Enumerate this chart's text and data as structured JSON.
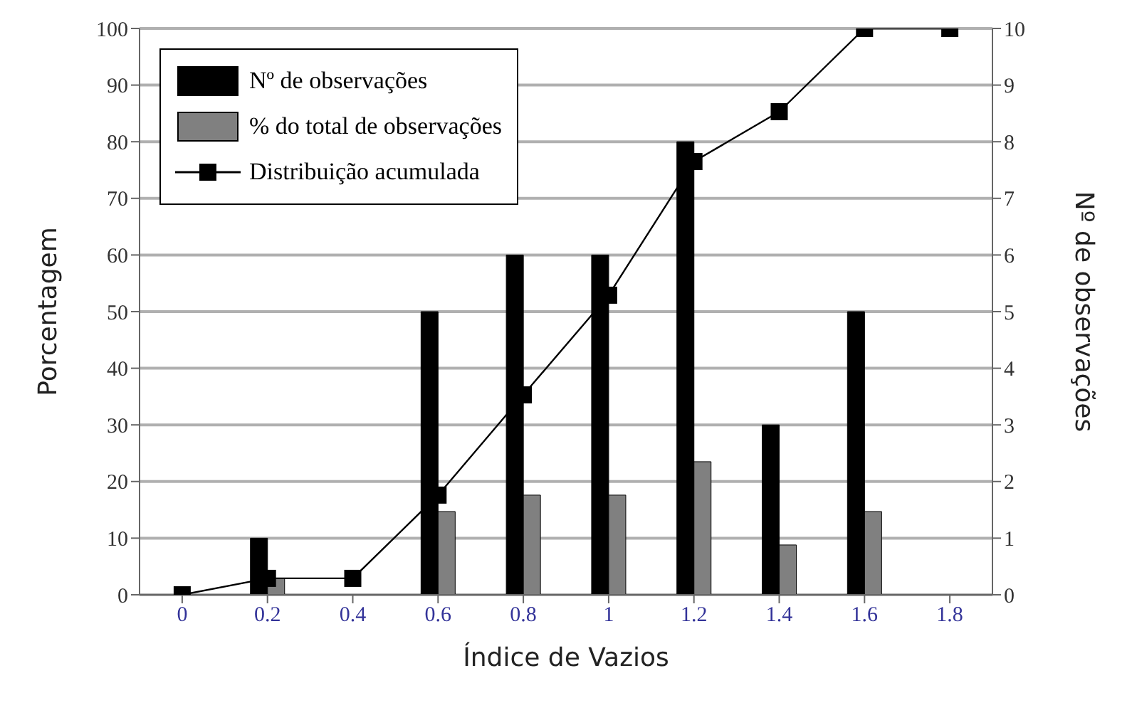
{
  "chart_data": {
    "type": "bar",
    "xlabel": "Índice de Vazios",
    "ylabel": "Porcentagem",
    "y2label": "Nº de observações",
    "categories": [
      "0",
      "0.2",
      "0.4",
      "0.6",
      "0.8",
      "1",
      "1.2",
      "1.4",
      "1.6",
      "1.8"
    ],
    "series": [
      {
        "name": "Nº de observações",
        "color": "#000000",
        "axis": "y2",
        "values": [
          0,
          1,
          0,
          5,
          6,
          6,
          8,
          3,
          5,
          0
        ]
      },
      {
        "name": "% do total de observações",
        "color": "#808080",
        "values": [
          0,
          2.9,
          0,
          14.7,
          17.6,
          17.6,
          23.5,
          8.8,
          14.7,
          0
        ]
      },
      {
        "name": "Distribuição acumulada",
        "type": "line",
        "color": "#000000",
        "marker": "square",
        "values": [
          0,
          2.9,
          2.9,
          17.6,
          35.3,
          52.9,
          76.5,
          85.3,
          100,
          100
        ]
      }
    ],
    "ylim": [
      0,
      100
    ],
    "yticks": [
      0,
      10,
      20,
      30,
      40,
      50,
      60,
      70,
      80,
      90,
      100
    ],
    "y2lim": [
      0,
      10
    ],
    "y2ticks": [
      0,
      1,
      2,
      3,
      4,
      5,
      6,
      7,
      8,
      9,
      10
    ],
    "grid": "y",
    "legend": "top left"
  }
}
